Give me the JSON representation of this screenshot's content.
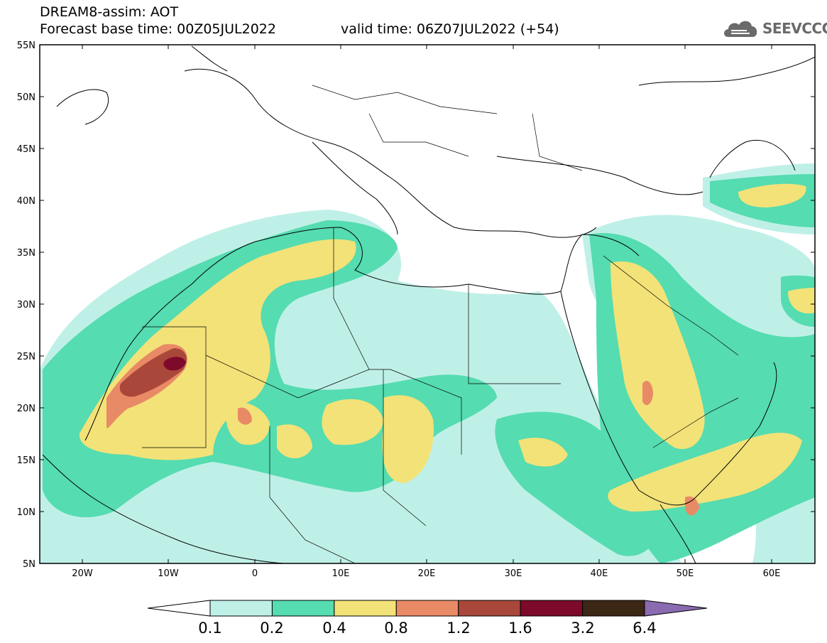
{
  "header": {
    "title": "DREAM8-assim: AOT",
    "base_time": "Forecast base time: 00Z05JUL2022",
    "valid_time": "valid time: 06Z07JUL2022 (+54)"
  },
  "logo": {
    "text": "SEEVCCC",
    "icon": "cloud-icon"
  },
  "map": {
    "lat_labels": [
      "55N",
      "50N",
      "45N",
      "40N",
      "35N",
      "30N",
      "25N",
      "20N",
      "15N",
      "10N",
      "5N"
    ],
    "lon_labels": [
      "20W",
      "10W",
      "0",
      "10E",
      "20E",
      "30E",
      "40E",
      "50E",
      "60E"
    ],
    "extent": {
      "lon_min": -25,
      "lon_max": 65,
      "lat_min": 5,
      "lat_max": 55
    }
  },
  "colorbar": {
    "labels": [
      "0.1",
      "0.2",
      "0.4",
      "0.8",
      "1.2",
      "1.6",
      "3.2",
      "6.4"
    ],
    "colors": [
      "#bff0e8",
      "#55dcb0",
      "#f3e278",
      "#e98a66",
      "#a9473b",
      "#7d0a2a",
      "#3c2614"
    ],
    "low_extend_color": "#ffffff",
    "high_extend_color": "#8a6bb0"
  }
}
